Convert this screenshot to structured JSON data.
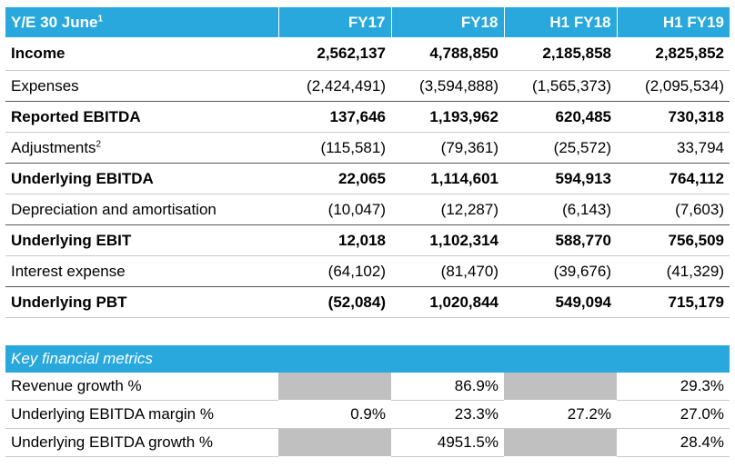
{
  "header": {
    "label": "Y/E 30 June",
    "label_sup": "1",
    "columns": [
      "FY17",
      "FY18",
      "H1 FY18",
      "H1 FY19"
    ]
  },
  "rows": [
    {
      "label": "Income",
      "sup": "",
      "values": [
        "2,562,137",
        "4,788,850",
        "2,185,858",
        "2,825,852"
      ]
    },
    {
      "label": "Expenses",
      "sup": "",
      "values": [
        "(2,424,491)",
        "(3,594,888)",
        "(1,565,373)",
        "(2,095,534)"
      ]
    },
    {
      "label": "Reported EBITDA",
      "sup": "",
      "values": [
        "137,646",
        "1,193,962",
        "620,485",
        "730,318"
      ]
    },
    {
      "label": "Adjustments",
      "sup": "2",
      "values": [
        "(115,581)",
        "(79,361)",
        "(25,572)",
        "33,794"
      ]
    },
    {
      "label": "Underlying EBITDA",
      "sup": "",
      "values": [
        "22,065",
        "1,114,601",
        "594,913",
        "764,112"
      ]
    },
    {
      "label": "Depreciation and amortisation",
      "sup": "",
      "values": [
        "(10,047)",
        "(12,287)",
        "(6,143)",
        "(7,603)"
      ]
    },
    {
      "label": "Underlying EBIT",
      "sup": "",
      "values": [
        "12,018",
        "1,102,314",
        "588,770",
        "756,509"
      ]
    },
    {
      "label": "Interest expense",
      "sup": "",
      "values": [
        "(64,102)",
        "(81,470)",
        "(39,676)",
        "(41,329)"
      ]
    },
    {
      "label": "Underlying PBT",
      "sup": "",
      "values": [
        "(52,084)",
        "1,020,844",
        "549,094",
        "715,179"
      ]
    }
  ],
  "metrics": {
    "title": "Key financial metrics",
    "rows": [
      {
        "label": "Revenue growth %",
        "values": [
          null,
          "86.9%",
          null,
          "29.3%"
        ]
      },
      {
        "label": "Underlying EBITDA margin %",
        "values": [
          "0.9%",
          "23.3%",
          "27.2%",
          "27.0%"
        ]
      },
      {
        "label": "Underlying EBITDA growth %",
        "values": [
          null,
          "4951.5%",
          null,
          "28.4%"
        ]
      }
    ]
  },
  "colors": {
    "header_bg": "#29a8dd",
    "na_cell": "#c0c0c0"
  }
}
